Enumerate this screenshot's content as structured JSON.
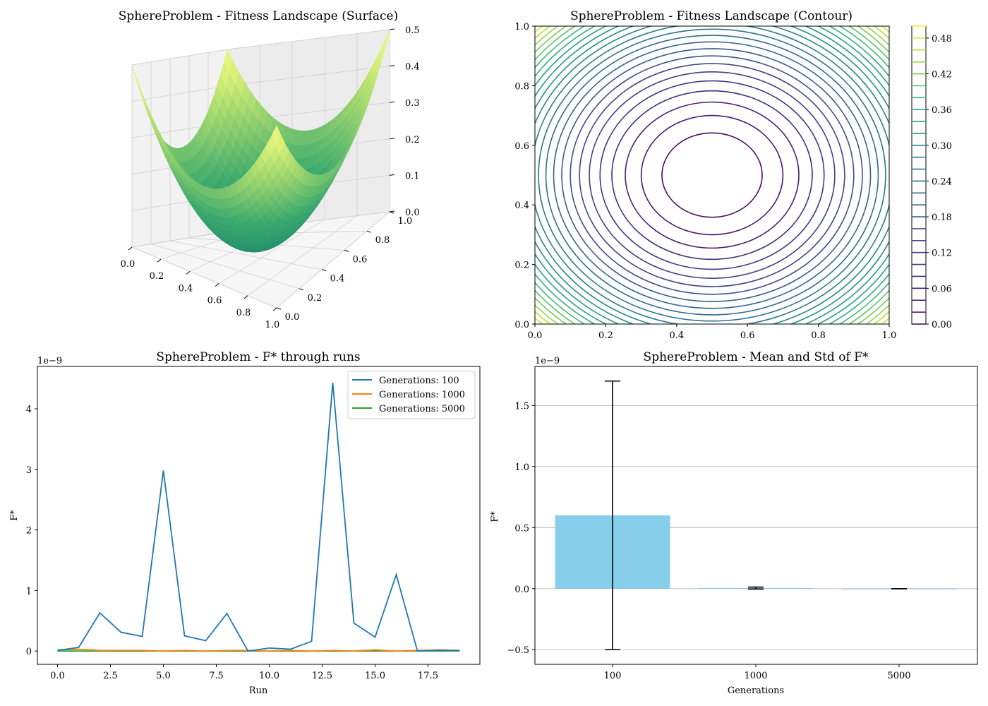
{
  "chart_data": [
    {
      "type": "surface3d",
      "title": "SphereProblem - Fitness Landscape (Surface)",
      "x_ticks": [
        "0.0",
        "0.2",
        "0.4",
        "0.6",
        "0.8",
        "1.0"
      ],
      "y_ticks": [
        "0.0",
        "0.2",
        "0.4",
        "0.6",
        "0.8",
        "1.0"
      ],
      "z_ticks": [
        "0.0",
        "0.1",
        "0.2",
        "0.3",
        "0.4",
        "0.5"
      ],
      "xlim": [
        0,
        1
      ],
      "ylim": [
        0,
        1
      ],
      "zlim": [
        0,
        0.5
      ],
      "function": "(x-0.5)^2 + (y-0.5)^2",
      "colormap": "summer-viridis",
      "grid": true
    },
    {
      "type": "contour",
      "title": "SphereProblem - Fitness Landscape (Contour)",
      "x_ticks": [
        "0.0",
        "0.2",
        "0.4",
        "0.6",
        "0.8",
        "1.0"
      ],
      "y_ticks": [
        "0.0",
        "0.2",
        "0.4",
        "0.6",
        "0.8",
        "1.0"
      ],
      "xlim": [
        0,
        1
      ],
      "ylim": [
        0,
        1
      ],
      "center": [
        0.5,
        0.5
      ],
      "levels_min": 0.0,
      "levels_max": 0.5,
      "levels_step": 0.02,
      "colorbar_ticks": [
        "0.00",
        "0.06",
        "0.12",
        "0.18",
        "0.24",
        "0.30",
        "0.36",
        "0.42",
        "0.48"
      ],
      "colormap": "viridis"
    },
    {
      "type": "line",
      "title": "SphereProblem - F* through runs",
      "xlabel": "Run",
      "ylabel": "F*",
      "y_multiplier": "1e−9",
      "xlim": [
        -0.95,
        19.95
      ],
      "ylim": [
        -0.22,
        4.7
      ],
      "x_ticks": [
        "0.0",
        "2.5",
        "5.0",
        "7.5",
        "10.0",
        "12.5",
        "15.0",
        "17.5"
      ],
      "y_ticks": [
        "0",
        "1",
        "2",
        "3",
        "4"
      ],
      "legend_position": "top-right",
      "x": [
        0,
        1,
        2,
        3,
        4,
        5,
        6,
        7,
        8,
        9,
        10,
        11,
        12,
        13,
        14,
        15,
        16,
        17,
        18,
        19
      ],
      "series": [
        {
          "name": "Generations: 100",
          "color": "#1f77b4",
          "values": [
            0.01,
            0.06,
            0.63,
            0.31,
            0.24,
            2.98,
            0.25,
            0.17,
            0.62,
            0.0,
            0.05,
            0.03,
            0.16,
            4.43,
            0.46,
            0.23,
            1.26,
            0.0,
            0.01,
            0.01
          ]
        },
        {
          "name": "Generations: 1000",
          "color": "#ff7f0e",
          "values": [
            0.02,
            0.03,
            0.01,
            0.01,
            0.01,
            0.0,
            0.01,
            0.0,
            0.01,
            0.01,
            0.0,
            0.01,
            0.0,
            0.01,
            0.0,
            0.02,
            0.0,
            0.01,
            0.02,
            0.01
          ]
        },
        {
          "name": "Generations: 5000",
          "color": "#2ca02c",
          "values": [
            0.0,
            0.0,
            0.0,
            0.0,
            0.0,
            0.0,
            0.0,
            0.0,
            0.0,
            0.0,
            0.0,
            0.0,
            0.0,
            0.0,
            0.0,
            0.0,
            0.0,
            0.0,
            0.0,
            0.0
          ]
        }
      ]
    },
    {
      "type": "bar",
      "title": "SphereProblem - Mean and Std of F*",
      "xlabel": "Generations",
      "ylabel": "F*",
      "y_multiplier": "1e−9",
      "categories": [
        "100",
        "1000",
        "5000"
      ],
      "values": [
        0.6,
        0.005,
        0.0
      ],
      "errors": [
        1.1,
        0.008,
        0.0
      ],
      "ylim": [
        -0.62,
        1.82
      ],
      "y_ticks": [
        "−0.5",
        "0.0",
        "0.5",
        "1.0",
        "1.5"
      ],
      "bar_color": "#87ceeb",
      "grid": "y"
    }
  ]
}
